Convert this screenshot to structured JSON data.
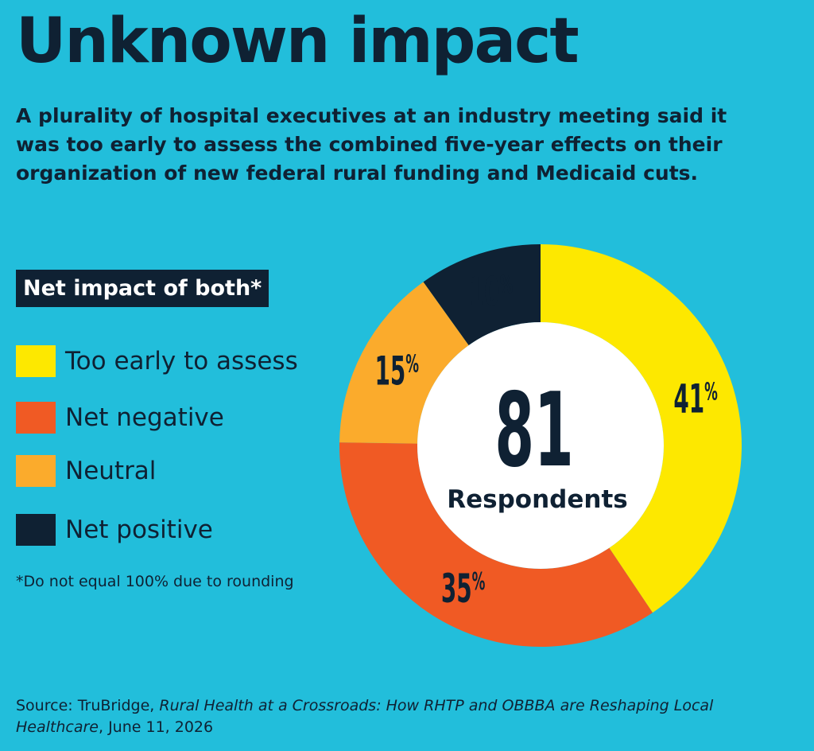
{
  "title": "Unknown impact",
  "subtitle": "A plurality of hospital executives at an industry meeting said it was too early to assess the combined five-year effects on their organization of new federal rural funding and Medicaid cuts.",
  "legend": {
    "title": "Net impact of both*",
    "items": [
      {
        "label": "Too early to assess",
        "color": "#fde800"
      },
      {
        "label": "Net negative",
        "color": "#f05a24"
      },
      {
        "label": "Neutral",
        "color": "#fbab2c"
      },
      {
        "label": "Net positive",
        "color": "#0f2133"
      }
    ]
  },
  "footnote": "*Do not equal 100% due to rounding",
  "source": {
    "prefix": "Source: TruBridge, ",
    "title": "Rural Health at a Crossroads:  How RHTP and OBBBA are Reshaping Local Healthcare",
    "suffix": ", June 11, 2026"
  },
  "chart_data": {
    "type": "pie",
    "donut": true,
    "center_value": "81",
    "center_label": "Respondents",
    "slices": [
      {
        "label": "Too early to assess",
        "value": 41,
        "display": "41%",
        "color": "#fde800"
      },
      {
        "label": "Net negative",
        "value": 35,
        "display": "35%",
        "color": "#f05a24"
      },
      {
        "label": "Neutral",
        "value": 15,
        "display": "15%",
        "color": "#fbab2c"
      },
      {
        "label": "Net positive",
        "value": 10,
        "display": "10%",
        "color": "#0f2133"
      }
    ]
  }
}
